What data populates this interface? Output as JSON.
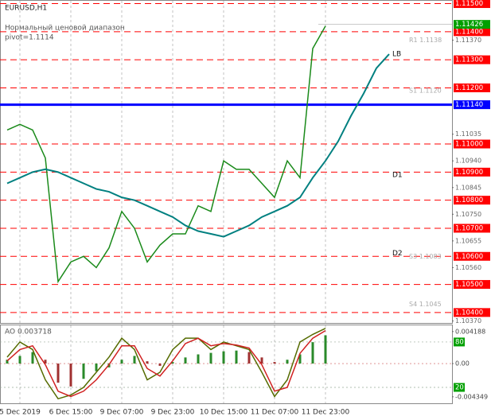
{
  "chart_data": [
    {
      "type": "line",
      "title": "EURUSD,H1",
      "annotations": [
        "Нормальный ценовой диапазон",
        "pivot=1.1114"
      ],
      "labels": [
        {
          "text": "LB",
          "value": 1.1132
        },
        {
          "text": "R1 1.1138",
          "value": 1.1137
        },
        {
          "text": "S1 1.1120",
          "value": 1.1119
        },
        {
          "text": "D1",
          "value": 1.1089
        },
        {
          "text": "D2",
          "value": 1.1061
        },
        {
          "text": "S3 1.1083",
          "value": 1.106
        },
        {
          "text": "S4 1.1045",
          "value": 1.1043
        }
      ],
      "categories": [
        null,
        "5 Dec 2019",
        null,
        null,
        null,
        "6 Dec 15:00",
        null,
        null,
        null,
        "9 Dec 07:00",
        null,
        null,
        null,
        "9 Dec 23:00",
        null,
        null,
        null,
        "10 Dec 15:00",
        null,
        null,
        null,
        "11 Dec 07:00",
        null,
        null,
        null,
        "11 Dec 23:00",
        null,
        null,
        null,
        null,
        null
      ],
      "series": [
        {
          "color": "#1a8a1a",
          "values": [
            1.1105,
            1.1107,
            1.1105,
            1.1095,
            1.1051,
            1.1058,
            1.106,
            1.1056,
            1.1063,
            1.1076,
            1.107,
            1.1058,
            1.1064,
            1.1068,
            1.1068,
            1.1078,
            1.1076,
            1.1094,
            1.1091,
            1.1091,
            1.1086,
            1.1081,
            1.1094,
            1.1088,
            1.1134,
            1.1142,
            null,
            null,
            null,
            null,
            null
          ]
        },
        {
          "color": "#008080",
          "values": [
            1.1086,
            1.1088,
            1.109,
            1.1091,
            1.109,
            1.1088,
            1.1086,
            1.1084,
            1.1083,
            1.1081,
            1.108,
            1.1078,
            1.1076,
            1.1074,
            1.1071,
            1.1069,
            1.1068,
            1.1067,
            1.1069,
            1.1071,
            1.1074,
            1.1076,
            1.1078,
            1.1081,
            1.1088,
            1.1094,
            1.1101,
            1.111,
            1.1118,
            1.1127,
            1.1132
          ]
        }
      ],
      "ylim": [
        1.1036,
        1.1151
      ],
      "yticks": [
        {
          "value": 1.1137,
          "label": "1.11370"
        },
        {
          "value": 1.11035,
          "label": "1.11035"
        },
        {
          "value": 1.1094,
          "label": "1.10940"
        },
        {
          "value": 1.10845,
          "label": "1.10845"
        },
        {
          "value": 1.1075,
          "label": "1.10750"
        },
        {
          "value": 1.10655,
          "label": "1.10655"
        },
        {
          "value": 1.1056,
          "label": "1.10560"
        },
        {
          "value": 1.1037,
          "label": "1.10370"
        }
      ],
      "levels": [
        {
          "value": 1.115,
          "label": "1.11500"
        },
        {
          "value": 1.114,
          "label": "1.11400"
        },
        {
          "value": 1.113,
          "label": "1.11300"
        },
        {
          "value": 1.112,
          "label": "1.11200"
        },
        {
          "value": 1.11,
          "label": "1.11000"
        },
        {
          "value": 1.109,
          "label": "1.10900"
        },
        {
          "value": 1.108,
          "label": "1.10800"
        },
        {
          "value": 1.107,
          "label": "1.10700"
        },
        {
          "value": 1.106,
          "label": "1.10600"
        },
        {
          "value": 1.105,
          "label": "1.10500"
        },
        {
          "value": 1.104,
          "label": "1.10400"
        }
      ],
      "level_color": "#ff0000",
      "pivot": {
        "value": 1.1114,
        "label": "1.11140"
      },
      "pivot_color": "#0000ff",
      "last_price": {
        "value": 1.11426,
        "label": "1.11426"
      },
      "last_price_color": "#00a000"
    },
    {
      "type": "bar",
      "title": "AO 0.003718",
      "series": [
        {
          "color": "#a03030",
          "values": [
            0.0005,
            0.001,
            0.0015,
            0.0005,
            -0.0025,
            -0.003,
            -0.002,
            -0.001,
            -0.0005,
            0.0005,
            0.001,
            0.0003,
            -0.0003,
            0.0002,
            0.0008,
            0.0012,
            0.0014,
            0.0016,
            0.0017,
            0.0015,
            0.0008,
            0.0002,
            0.0005,
            0.0012,
            0.0028,
            0.0037
          ]
        },
        {
          "type": "line",
          "axis": "y2",
          "color": "#556b00",
          "values": [
            60,
            80,
            70,
            30,
            5,
            10,
            20,
            40,
            60,
            85,
            70,
            30,
            40,
            70,
            85,
            85,
            70,
            80,
            75,
            70,
            40,
            8,
            30,
            80,
            90,
            98
          ]
        },
        {
          "type": "line",
          "axis": "y2",
          "color": "#d02020",
          "values": [
            55,
            70,
            75,
            50,
            15,
            8,
            15,
            30,
            50,
            75,
            75,
            45,
            35,
            55,
            78,
            85,
            75,
            78,
            76,
            72,
            50,
            15,
            20,
            65,
            85,
            95
          ]
        }
      ],
      "ylim": [
        -0.0052,
        0.005
      ],
      "yticks": [
        0.004188,
        {
          "value": 0,
          "label": "0.00"
        },
        -0.004349
      ],
      "y2lim": [
        -1,
        102
      ],
      "y2ticks": [
        80,
        20
      ],
      "y2tick_color": "#00a000"
    }
  ]
}
